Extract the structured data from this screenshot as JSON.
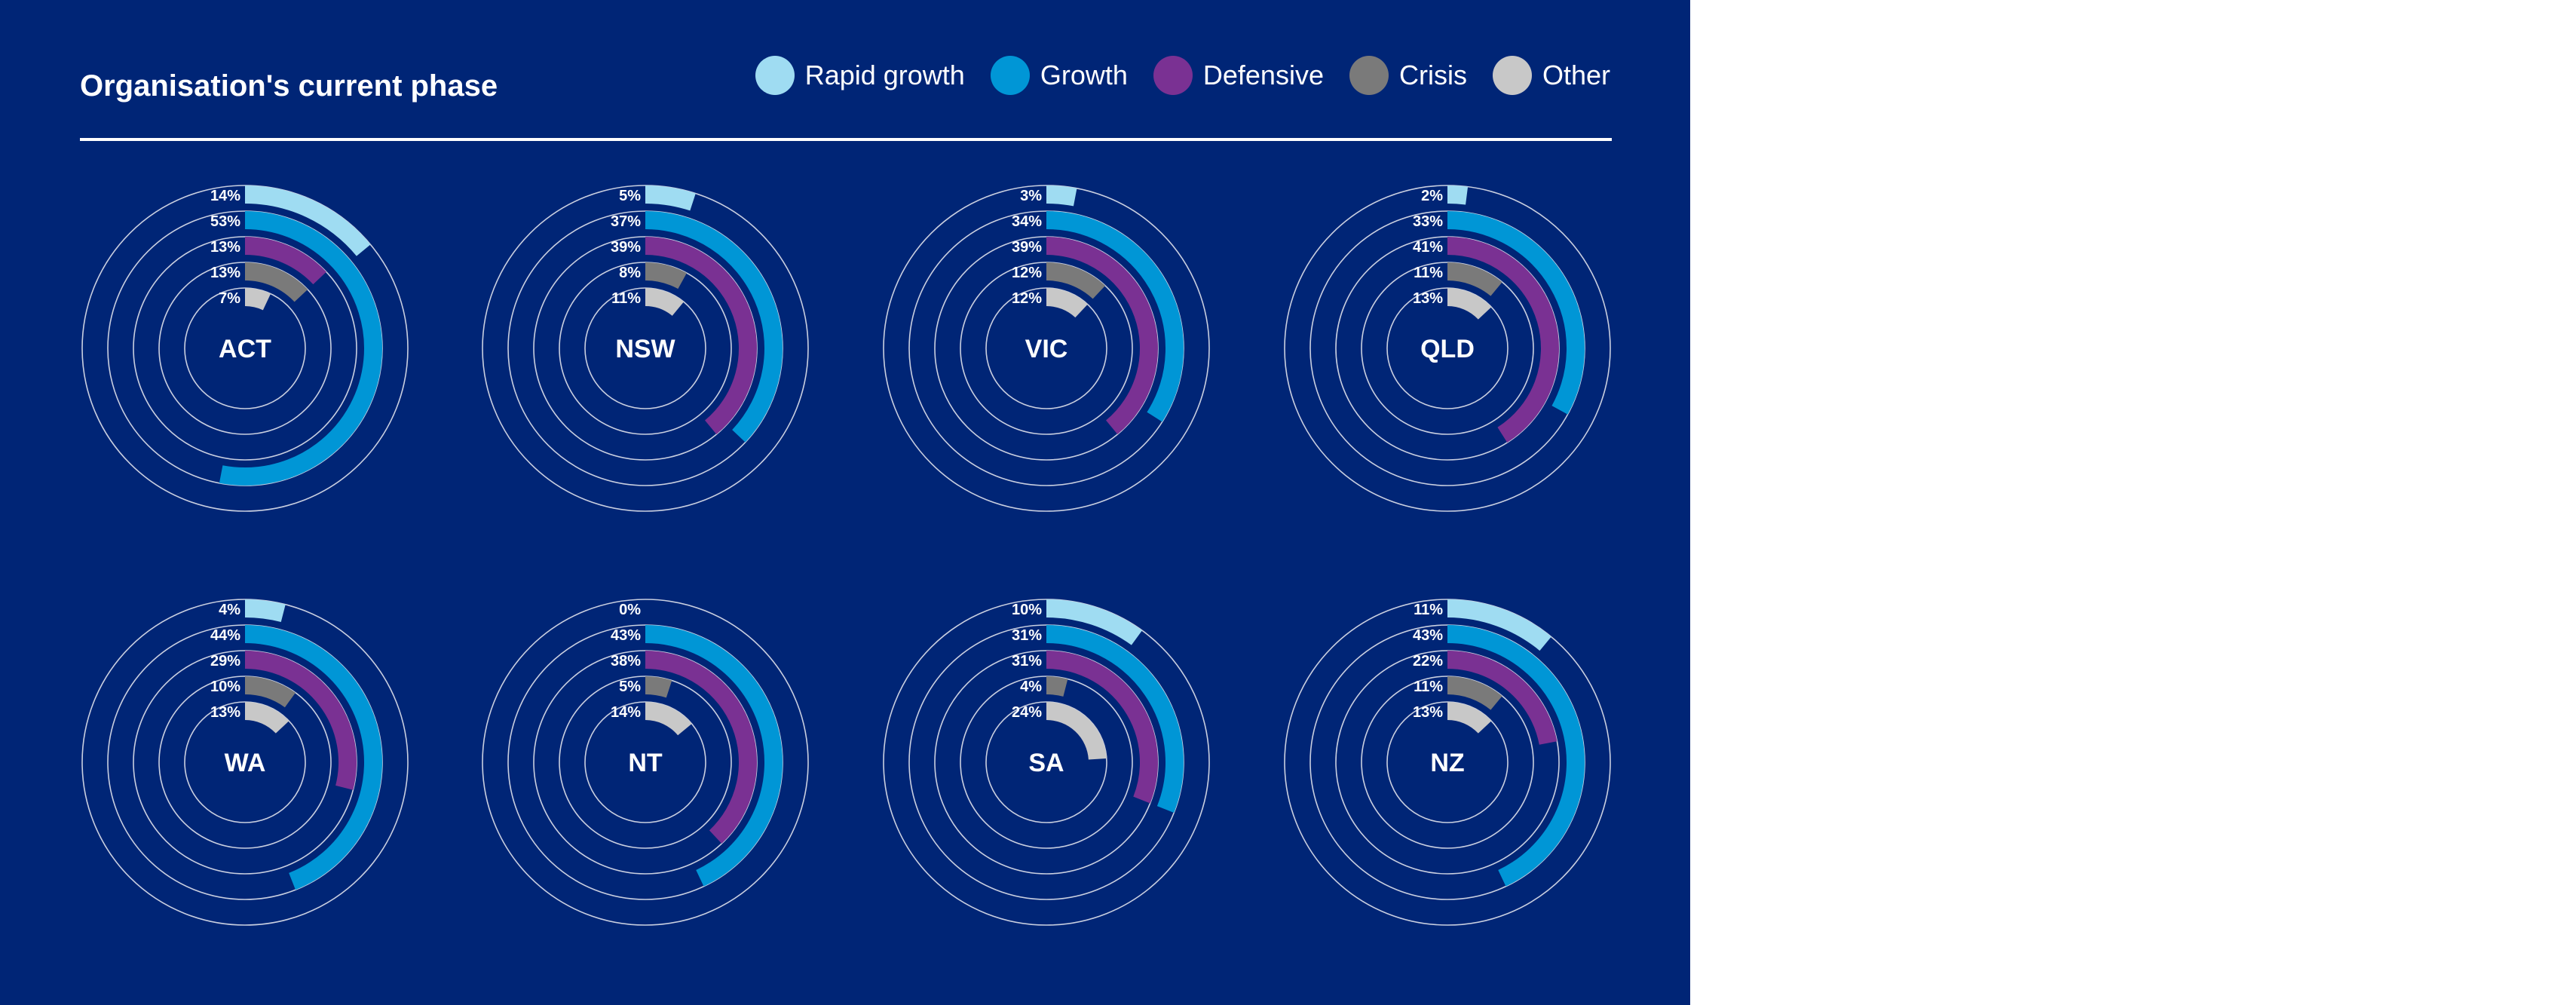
{
  "title": "Organisation's current phase",
  "legend": [
    {
      "label": "Rapid growth",
      "color": "#9fdcf2"
    },
    {
      "label": "Growth",
      "color": "#0096d6"
    },
    {
      "label": "Defensive",
      "color": "#7a3193"
    },
    {
      "label": "Crisis",
      "color": "#7a7a7a"
    },
    {
      "label": "Other",
      "color": "#c8c8c8"
    }
  ],
  "chart_data": {
    "type": "radial-bar",
    "title": "Organisation's current phase",
    "series_names": [
      "Rapid growth",
      "Growth",
      "Defensive",
      "Crisis",
      "Other"
    ],
    "colors": [
      "#9fdcf2",
      "#0096d6",
      "#7a3193",
      "#7a7a7a",
      "#c8c8c8"
    ],
    "unit": "%",
    "max": 100,
    "regions": [
      {
        "name": "ACT",
        "values": [
          14,
          53,
          13,
          13,
          7
        ]
      },
      {
        "name": "NSW",
        "values": [
          5,
          37,
          39,
          8,
          11
        ]
      },
      {
        "name": "VIC",
        "values": [
          3,
          34,
          39,
          12,
          12
        ]
      },
      {
        "name": "QLD",
        "values": [
          2,
          33,
          41,
          11,
          13
        ]
      },
      {
        "name": "WA",
        "values": [
          4,
          44,
          29,
          10,
          13
        ]
      },
      {
        "name": "NT",
        "values": [
          0,
          43,
          38,
          5,
          14
        ]
      },
      {
        "name": "SA",
        "values": [
          10,
          31,
          31,
          4,
          24
        ]
      },
      {
        "name": "NZ",
        "values": [
          11,
          43,
          22,
          11,
          13
        ]
      }
    ]
  }
}
